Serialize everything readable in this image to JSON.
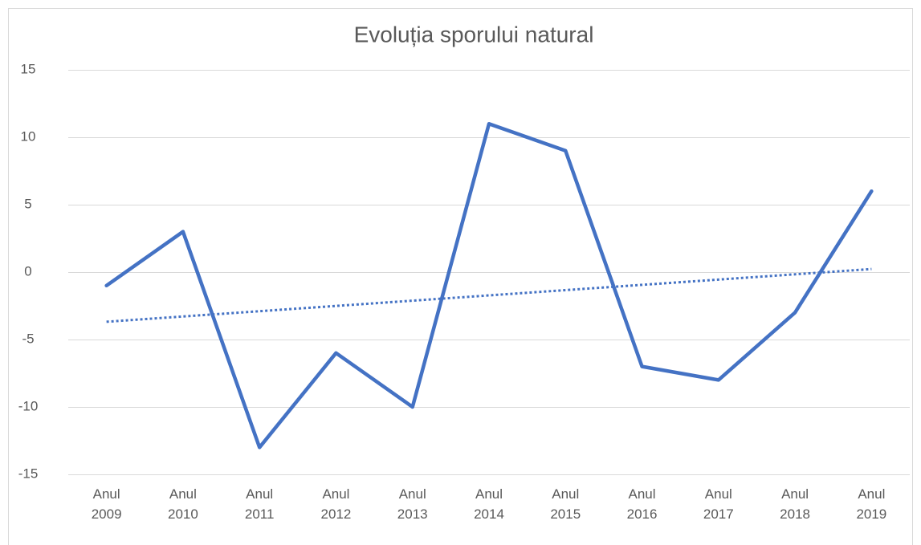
{
  "chart_data": {
    "type": "line",
    "title": "Evoluția sporului natural",
    "categories": [
      "Anul 2009",
      "Anul 2010",
      "Anul 2011",
      "Anul 2012",
      "Anul 2013",
      "Anul 2014",
      "Anul 2015",
      "Anul 2016",
      "Anul 2017",
      "Anul 2018",
      "Anul 2019"
    ],
    "values": [
      -1,
      3,
      -13,
      -6,
      -10,
      11,
      9,
      -7,
      -8,
      -3,
      6
    ],
    "color": "#4472c4",
    "trendline": "linear",
    "ylim": [
      -15,
      15
    ],
    "yticks": [
      -15,
      -10,
      -5,
      0,
      5,
      10,
      15
    ],
    "grid": true
  }
}
